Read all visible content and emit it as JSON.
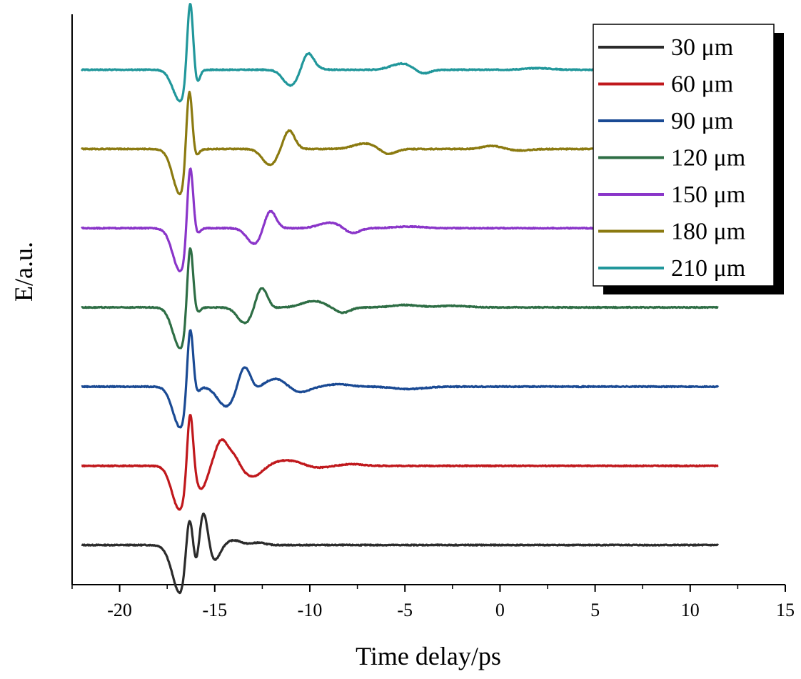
{
  "chart_data": {
    "type": "line",
    "title": "",
    "xlabel": "Time delay/ps",
    "ylabel": "E/a.u.",
    "xlim": [
      -22.5,
      15
    ],
    "ylim": [
      -0.5,
      6.7
    ],
    "xticks": [
      -20,
      -15,
      -10,
      -5,
      0,
      5,
      10,
      15
    ],
    "xtick_labels": [
      "-20",
      "-15",
      "-10",
      "-5",
      "0",
      "5",
      "10",
      "15"
    ],
    "legend_position": "top-right",
    "x_range": [
      -22,
      11.5
    ],
    "series": [
      {
        "name": "30 μm",
        "color": "#2b2b2b",
        "offset": 0,
        "features": [
          [
            -16.8,
            -0.62,
            0.42
          ],
          [
            -16.35,
            0.65,
            0.18
          ],
          [
            -15.95,
            -0.28,
            0.16
          ],
          [
            -15.6,
            0.47,
            0.24
          ],
          [
            -15.05,
            -0.21,
            0.3
          ],
          [
            -14.0,
            0.06,
            0.4
          ],
          [
            -12.7,
            0.03,
            0.35
          ]
        ]
      },
      {
        "name": "60 μm",
        "color": "#c0181c",
        "offset": 1,
        "features": [
          [
            -16.85,
            -0.55,
            0.4
          ],
          [
            -16.3,
            0.89,
            0.16
          ],
          [
            -15.7,
            -0.28,
            0.3
          ],
          [
            -14.65,
            0.32,
            0.32
          ],
          [
            -14.0,
            0.13,
            0.3
          ],
          [
            -13.0,
            -0.14,
            0.5
          ],
          [
            -11.2,
            0.07,
            0.8
          ],
          [
            -9.7,
            -0.03,
            0.6
          ],
          [
            -7.8,
            0.02,
            0.6
          ]
        ]
      },
      {
        "name": "90 μm",
        "color": "#1a4a94",
        "offset": 2,
        "features": [
          [
            -16.8,
            -0.52,
            0.4
          ],
          [
            -16.3,
            0.95,
            0.16
          ],
          [
            -15.95,
            -0.05,
            0.15
          ],
          [
            -14.4,
            -0.25,
            0.45
          ],
          [
            -13.45,
            0.27,
            0.3
          ],
          [
            -12.8,
            -0.03,
            0.25
          ],
          [
            -11.8,
            0.1,
            0.5
          ],
          [
            -10.5,
            -0.07,
            0.5
          ],
          [
            -8.5,
            0.03,
            0.6
          ],
          [
            -4.8,
            -0.03,
            0.8
          ]
        ]
      },
      {
        "name": "120 μm",
        "color": "#2e6e45",
        "offset": 3,
        "features": [
          [
            -16.8,
            -0.52,
            0.4
          ],
          [
            -16.3,
            0.98,
            0.16
          ],
          [
            -15.95,
            -0.05,
            0.15
          ],
          [
            -13.4,
            -0.2,
            0.4
          ],
          [
            -12.55,
            0.26,
            0.3
          ],
          [
            -11.9,
            -0.01,
            0.25
          ],
          [
            -9.8,
            0.08,
            0.6
          ],
          [
            -8.3,
            -0.07,
            0.4
          ],
          [
            -5.0,
            0.03,
            0.7
          ],
          [
            -2.5,
            0.02,
            0.8
          ]
        ]
      },
      {
        "name": "150 μm",
        "color": "#8a35c9",
        "offset": 4,
        "features": [
          [
            -16.8,
            -0.55,
            0.4
          ],
          [
            -16.3,
            1.0,
            0.16
          ],
          [
            -15.95,
            -0.05,
            0.15
          ],
          [
            -12.9,
            -0.2,
            0.4
          ],
          [
            -12.1,
            0.24,
            0.3
          ],
          [
            -11.5,
            0.0,
            0.25
          ],
          [
            -8.9,
            0.07,
            0.6
          ],
          [
            -7.8,
            -0.07,
            0.4
          ],
          [
            -4.8,
            0.02,
            0.8
          ]
        ]
      },
      {
        "name": "180 μm",
        "color": "#8b7a10",
        "offset": 5,
        "features": [
          [
            -16.8,
            -0.58,
            0.4
          ],
          [
            -16.35,
            1.02,
            0.16
          ],
          [
            -16.0,
            -0.05,
            0.15
          ],
          [
            -12.1,
            -0.2,
            0.4
          ],
          [
            -11.1,
            0.24,
            0.3
          ],
          [
            -10.4,
            0.0,
            0.25
          ],
          [
            -7.1,
            0.07,
            0.6
          ],
          [
            -5.9,
            -0.07,
            0.4
          ],
          [
            -0.4,
            0.04,
            0.5
          ],
          [
            1.0,
            -0.02,
            0.6
          ]
        ]
      },
      {
        "name": "210 μm",
        "color": "#21979b",
        "offset": 6,
        "features": [
          [
            -16.8,
            -0.4,
            0.4
          ],
          [
            -16.3,
            1.02,
            0.16
          ],
          [
            -15.95,
            -0.16,
            0.15
          ],
          [
            -11.0,
            -0.2,
            0.4
          ],
          [
            -10.1,
            0.22,
            0.3
          ],
          [
            -9.4,
            0.01,
            0.25
          ],
          [
            -5.1,
            0.08,
            0.6
          ],
          [
            -4.1,
            -0.06,
            0.4
          ],
          [
            2.0,
            0.02,
            0.7
          ]
        ]
      }
    ]
  }
}
